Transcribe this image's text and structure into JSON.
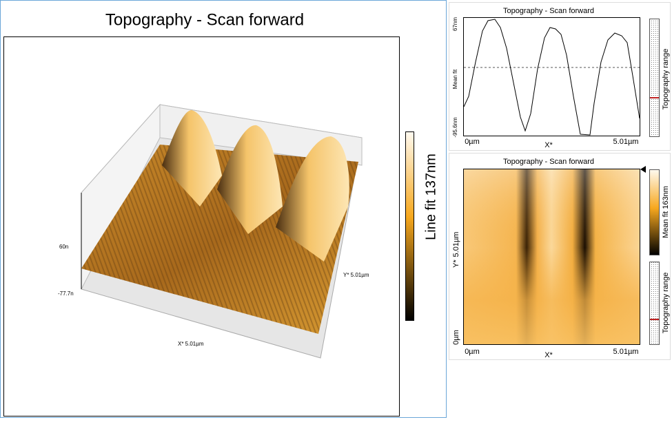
{
  "main_panel": {
    "title": "Topography - Scan forward",
    "z_max_label": "60n",
    "z_min_label": "-77.7n",
    "y_axis_label": "Y* 5.01µm",
    "x_axis_label": "X* 5.01µm",
    "colorbar_label": "Line fit 137nm"
  },
  "profile_panel": {
    "title": "Topography - Scan forward",
    "y_max_label": "67nm",
    "y_min_label": "-95.6nm",
    "y_axis_label": "Mean fit",
    "x_min_label": "0µm",
    "x_axis_label": "X*",
    "x_max_label": "5.01µm",
    "range_label": "Topography range"
  },
  "image_panel": {
    "title": "Topography - Scan forward",
    "y_max_label": "5.01µm",
    "y_axis_label": "Y*",
    "y_min_label": "0µm",
    "x_min_label": "0µm",
    "x_axis_label": "X*",
    "x_max_label": "5.01µm",
    "colorbar_label": "Mean fit 163nm",
    "range_label": "Topography range"
  }
}
